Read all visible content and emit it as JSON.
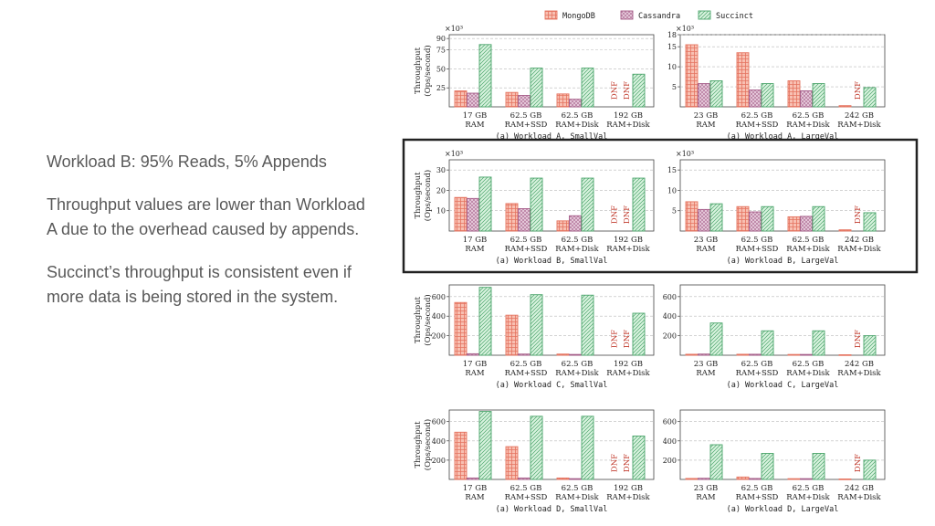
{
  "slide": {
    "heading": "Workload B: 95% Reads, 5% Appends",
    "para1": "Throughput values are lower than Workload A due to the overhead caused by appends.",
    "para2": "Succinct’s throughput is consistent even if more data is being stored in the system."
  },
  "legend": [
    {
      "name": "MongoDB",
      "color": "#e5735f",
      "fill": "#f8c0b2",
      "pattern": "grid"
    },
    {
      "name": "Cassandra",
      "color": "#a45a87",
      "fill": "#e3c5d7",
      "pattern": "checker"
    },
    {
      "name": "Succinct",
      "color": "#4aa46a",
      "fill": "#d9f3df",
      "pattern": "hatch"
    }
  ],
  "y_label_1": "Throughput",
  "y_label_2": "(Ops/second)",
  "dnf_label": "DNF",
  "highlight_color": "#222222",
  "chart_data": [
    {
      "type": "bar",
      "title": "(a) Workload A, SmallVal",
      "multiplier": "×10³",
      "ylim": [
        0,
        95
      ],
      "yticks": [
        25,
        50,
        75,
        90
      ],
      "categories": [
        [
          "17 GB",
          "RAM"
        ],
        [
          "62.5 GB",
          "RAM+SSD"
        ],
        [
          "62.5 GB",
          "RAM+Disk"
        ],
        [
          "192 GB",
          "RAM+Disk"
        ]
      ],
      "series": [
        {
          "name": "MongoDB",
          "values": [
            21,
            19,
            17,
            null
          ]
        },
        {
          "name": "Cassandra",
          "values": [
            18,
            15,
            10,
            null
          ]
        },
        {
          "name": "Succinct",
          "values": [
            82,
            51,
            51,
            43
          ]
        }
      ]
    },
    {
      "type": "bar",
      "title": "(a) Workload A, LargeVal",
      "multiplier": "×10³",
      "ylim": [
        0,
        18
      ],
      "yticks": [
        5,
        10,
        15,
        18
      ],
      "categories": [
        [
          "23 GB",
          "RAM"
        ],
        [
          "62.5 GB",
          "RAM+SSD"
        ],
        [
          "62.5 GB",
          "RAM+Disk"
        ],
        [
          "242 GB",
          "RAM+Disk"
        ]
      ],
      "series": [
        {
          "name": "MongoDB",
          "values": [
            15.5,
            13.5,
            6.5,
            0.3
          ]
        },
        {
          "name": "Cassandra",
          "values": [
            5.8,
            4.2,
            4.0,
            null
          ]
        },
        {
          "name": "Succinct",
          "values": [
            6.5,
            5.8,
            5.8,
            4.8
          ]
        }
      ]
    },
    {
      "type": "bar",
      "title": "(a) Workload B, SmallVal",
      "multiplier": "×10³",
      "ylim": [
        0,
        35
      ],
      "yticks": [
        10,
        20,
        30
      ],
      "categories": [
        [
          "17 GB",
          "RAM"
        ],
        [
          "62.5 GB",
          "RAM+SSD"
        ],
        [
          "62.5 GB",
          "RAM+Disk"
        ],
        [
          "192 GB",
          "RAM+Disk"
        ]
      ],
      "series": [
        {
          "name": "MongoDB",
          "values": [
            16.5,
            13.5,
            5,
            null
          ]
        },
        {
          "name": "Cassandra",
          "values": [
            16,
            11,
            7.5,
            null
          ]
        },
        {
          "name": "Succinct",
          "values": [
            26.5,
            26,
            26,
            26
          ]
        }
      ]
    },
    {
      "type": "bar",
      "title": "(a) Workload B, LargeVal",
      "multiplier": "×10³",
      "ylim": [
        0,
        17.5
      ],
      "yticks": [
        5,
        10,
        15
      ],
      "categories": [
        [
          "23 GB",
          "RAM"
        ],
        [
          "62.5 GB",
          "RAM+SSD"
        ],
        [
          "62.5 GB",
          "RAM+Disk"
        ],
        [
          "242 GB",
          "RAM+Disk"
        ]
      ],
      "series": [
        {
          "name": "MongoDB",
          "values": [
            7.2,
            6,
            3.5,
            0.3
          ]
        },
        {
          "name": "Cassandra",
          "values": [
            5.3,
            4.7,
            3.6,
            null
          ]
        },
        {
          "name": "Succinct",
          "values": [
            6.7,
            6,
            6,
            4.5
          ]
        }
      ]
    },
    {
      "type": "bar",
      "title": "(a) Workload C, SmallVal",
      "multiplier": "",
      "ylim": [
        0,
        720
      ],
      "yticks": [
        200,
        400,
        600
      ],
      "categories": [
        [
          "17 GB",
          "RAM"
        ],
        [
          "62.5 GB",
          "RAM+SSD"
        ],
        [
          "62.5 GB",
          "RAM+Disk"
        ],
        [
          "192 GB",
          "RAM+Disk"
        ]
      ],
      "series": [
        {
          "name": "MongoDB",
          "values": [
            540,
            410,
            12,
            null
          ]
        },
        {
          "name": "Cassandra",
          "values": [
            15,
            12,
            8,
            null
          ]
        },
        {
          "name": "Succinct",
          "values": [
            695,
            620,
            615,
            430
          ]
        }
      ]
    },
    {
      "type": "bar",
      "title": "(a) Workload C, LargeVal",
      "multiplier": "",
      "ylim": [
        0,
        720
      ],
      "yticks": [
        200,
        400,
        600
      ],
      "categories": [
        [
          "23 GB",
          "RAM"
        ],
        [
          "62.5 GB",
          "RAM+SSD"
        ],
        [
          "62.5 GB",
          "RAM+Disk"
        ],
        [
          "242 GB",
          "RAM+Disk"
        ]
      ],
      "series": [
        {
          "name": "MongoDB",
          "values": [
            10,
            10,
            8,
            5
          ]
        },
        {
          "name": "Cassandra",
          "values": [
            12,
            10,
            8,
            null
          ]
        },
        {
          "name": "Succinct",
          "values": [
            330,
            250,
            250,
            200
          ]
        }
      ]
    },
    {
      "type": "bar",
      "title": "(a) Workload D, SmallVal",
      "multiplier": "",
      "ylim": [
        0,
        720
      ],
      "yticks": [
        200,
        400,
        600
      ],
      "categories": [
        [
          "17 GB",
          "RAM"
        ],
        [
          "62.5 GB",
          "RAM+SSD"
        ],
        [
          "62.5 GB",
          "RAM+Disk"
        ],
        [
          "192 GB",
          "RAM+Disk"
        ]
      ],
      "series": [
        {
          "name": "MongoDB",
          "values": [
            490,
            340,
            15,
            null
          ]
        },
        {
          "name": "Cassandra",
          "values": [
            15,
            15,
            8,
            null
          ]
        },
        {
          "name": "Succinct",
          "values": [
            705,
            655,
            655,
            450
          ]
        }
      ]
    },
    {
      "type": "bar",
      "title": "(a) Workload D, LargeVal",
      "multiplier": "",
      "ylim": [
        0,
        720
      ],
      "yticks": [
        200,
        400,
        600
      ],
      "categories": [
        [
          "23 GB",
          "RAM"
        ],
        [
          "62.5 GB",
          "RAM+SSD"
        ],
        [
          "62.5 GB",
          "RAM+Disk"
        ],
        [
          "242 GB",
          "RAM+Disk"
        ]
      ],
      "series": [
        {
          "name": "MongoDB",
          "values": [
            10,
            25,
            8,
            5
          ]
        },
        {
          "name": "Cassandra",
          "values": [
            12,
            10,
            8,
            null
          ]
        },
        {
          "name": "Succinct",
          "values": [
            360,
            270,
            270,
            200
          ]
        }
      ]
    }
  ]
}
